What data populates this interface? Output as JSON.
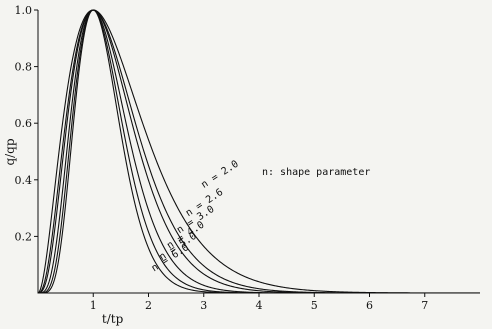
{
  "chart_data": {
    "type": "line",
    "xlabel": "t/tp",
    "ylabel": "q/qp",
    "annotation": "n: shape parameter",
    "xlim": [
      0,
      8
    ],
    "ylim": [
      0,
      1.0
    ],
    "xticks": [
      "1",
      "2",
      "3",
      "4",
      "5",
      "6",
      "7"
    ],
    "yticks": [
      "0.2",
      "0.4",
      "0.6",
      "0.8",
      "1.0"
    ],
    "series": [
      {
        "name": "n = 2.0",
        "n": 2.0
      },
      {
        "name": "n = 2.6",
        "n": 2.6
      },
      {
        "name": "n = 3.0",
        "n": 3.0
      },
      {
        "name": "n = 4.0",
        "n": 4.0
      },
      {
        "name": "n = 5.0",
        "n": 5.0
      },
      {
        "name": "n = 6.0",
        "n": 6.0
      }
    ]
  }
}
